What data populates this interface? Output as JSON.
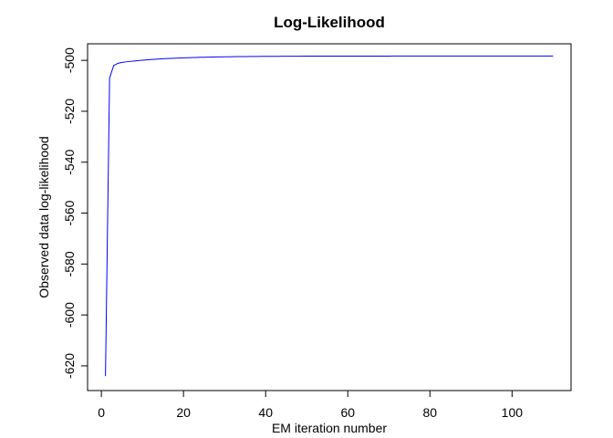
{
  "chart_data": {
    "type": "line",
    "title": "Log-Likelihood",
    "x_label": "EM iteration number",
    "y_label": "Observed data log-likelihood",
    "color": "#0000ff",
    "x": [
      1,
      2,
      3,
      4,
      5,
      6,
      7,
      8,
      9,
      10,
      11,
      12,
      13,
      14,
      15,
      16,
      17,
      18,
      19,
      20,
      21,
      22,
      23,
      24,
      25,
      26,
      27,
      28,
      29,
      30,
      31,
      32,
      33,
      34,
      35,
      36,
      37,
      38,
      39,
      40,
      41,
      42,
      43,
      44,
      45,
      46,
      47,
      48,
      49,
      50,
      51,
      52,
      53,
      54,
      55,
      56,
      57,
      58,
      59,
      60,
      61,
      62,
      63,
      64,
      65,
      66,
      67,
      68,
      69,
      70,
      71,
      72,
      73,
      74,
      75,
      76,
      77,
      78,
      79,
      80,
      81,
      82,
      83,
      84,
      85,
      86,
      87,
      88,
      89,
      90,
      91,
      92,
      93,
      94,
      95,
      96,
      97,
      98,
      99,
      100,
      101,
      102,
      103,
      104,
      105,
      106,
      107,
      108,
      109,
      110
    ],
    "values": [
      -624.0,
      -507.0,
      -502.0,
      -501.2,
      -500.8,
      -500.6,
      -500.42,
      -500.25,
      -500.09,
      -499.95,
      -499.82,
      -499.7,
      -499.58,
      -499.48,
      -499.39,
      -499.3,
      -499.22,
      -499.15,
      -499.08,
      -499.02,
      -498.96,
      -498.91,
      -498.86,
      -498.81,
      -498.77,
      -498.74,
      -498.7,
      -498.67,
      -498.64,
      -498.61,
      -498.59,
      -498.56,
      -498.54,
      -498.52,
      -498.51,
      -498.49,
      -498.47,
      -498.46,
      -498.45,
      -498.44,
      -498.43,
      -498.41,
      -498.41,
      -498.4,
      -498.39,
      -498.38,
      -498.37,
      -498.37,
      -498.36,
      -498.35,
      -498.35,
      -498.34,
      -498.34,
      -498.33,
      -498.33,
      -498.32,
      -498.32,
      -498.32,
      -498.32,
      -498.32,
      -498.32,
      -498.32,
      -498.32,
      -498.32,
      -498.32,
      -498.32,
      -498.32,
      -498.32,
      -498.32,
      -498.32,
      -498.31,
      -498.31,
      -498.31,
      -498.31,
      -498.31,
      -498.31,
      -498.31,
      -498.31,
      -498.31,
      -498.31,
      -498.31,
      -498.31,
      -498.31,
      -498.31,
      -498.31,
      -498.31,
      -498.31,
      -498.31,
      -498.31,
      -498.31,
      -498.3,
      -498.3,
      -498.3,
      -498.3,
      -498.3,
      -498.3,
      -498.3,
      -498.3,
      -498.3,
      -498.3,
      -498.3,
      -498.3,
      -498.3,
      -498.3,
      -498.3,
      -498.3,
      -498.3,
      -498.3,
      -498.3,
      -498.3
    ],
    "xlim": [
      -3.36,
      114.36
    ],
    "xticks": [
      0,
      20,
      40,
      60,
      80,
      100
    ],
    "ylim": [
      -629.7,
      -493.5
    ],
    "yticks": [
      -620,
      -600,
      -580,
      -560,
      -540,
      -520,
      -500
    ]
  }
}
